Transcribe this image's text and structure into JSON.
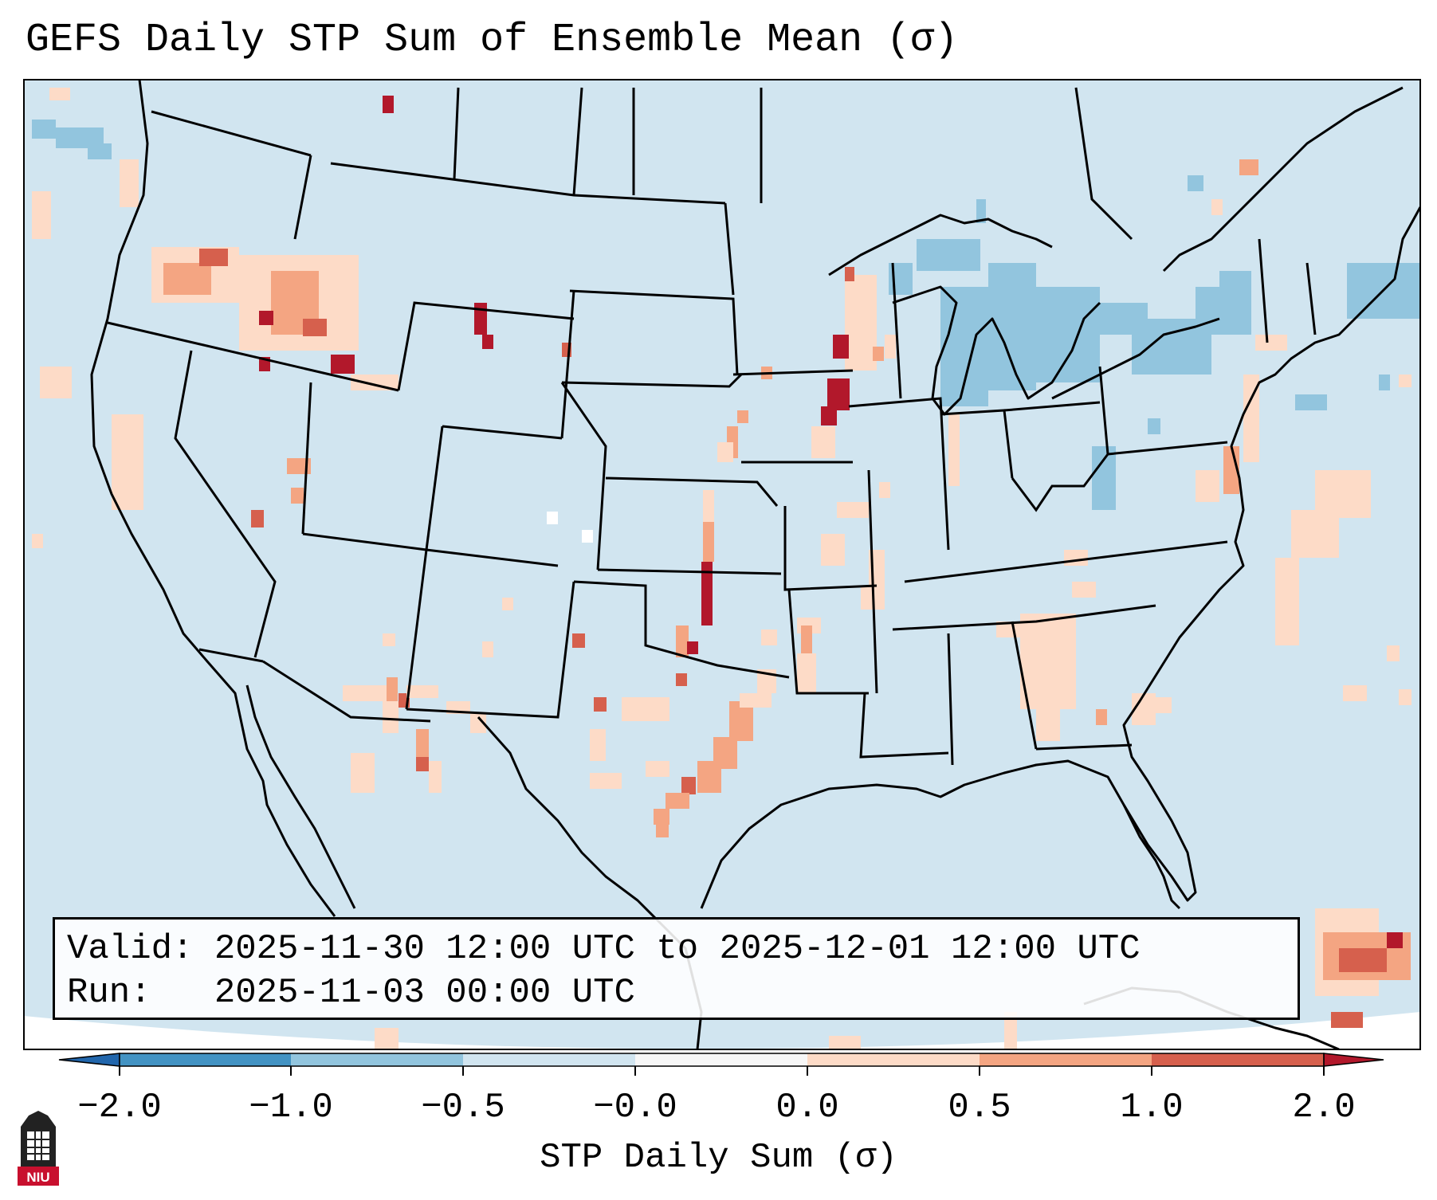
{
  "title": "GEFS Daily STP Sum of Ensemble Mean (σ)",
  "info": {
    "valid_label": "Valid:",
    "valid_value": "2025-11-30 12:00 UTC to 2025-12-01 12:00 UTC",
    "run_label": "Run:",
    "run_value": "2025-11-03 00:00 UTC"
  },
  "colorbar": {
    "label": "STP Daily Sum (σ)",
    "ticks": [
      "−2.0",
      "−1.0",
      "−0.5",
      "−0.0",
      "0.0",
      "0.5",
      "1.0",
      "2.0"
    ],
    "bins": [
      {
        "color": "#2166ac"
      },
      {
        "color": "#4393c3"
      },
      {
        "color": "#92c5de"
      },
      {
        "color": "#d1e5f0"
      },
      {
        "color": "#f7f7f7"
      },
      {
        "color": "#fddbc7"
      },
      {
        "color": "#f4a582"
      },
      {
        "color": "#d6604d"
      },
      {
        "color": "#b2182b"
      }
    ]
  },
  "map": {
    "background_color": "#d1e5f0",
    "border_color": "#000000"
  },
  "logo": {
    "text": "NIU",
    "color": "#c8102e"
  }
}
